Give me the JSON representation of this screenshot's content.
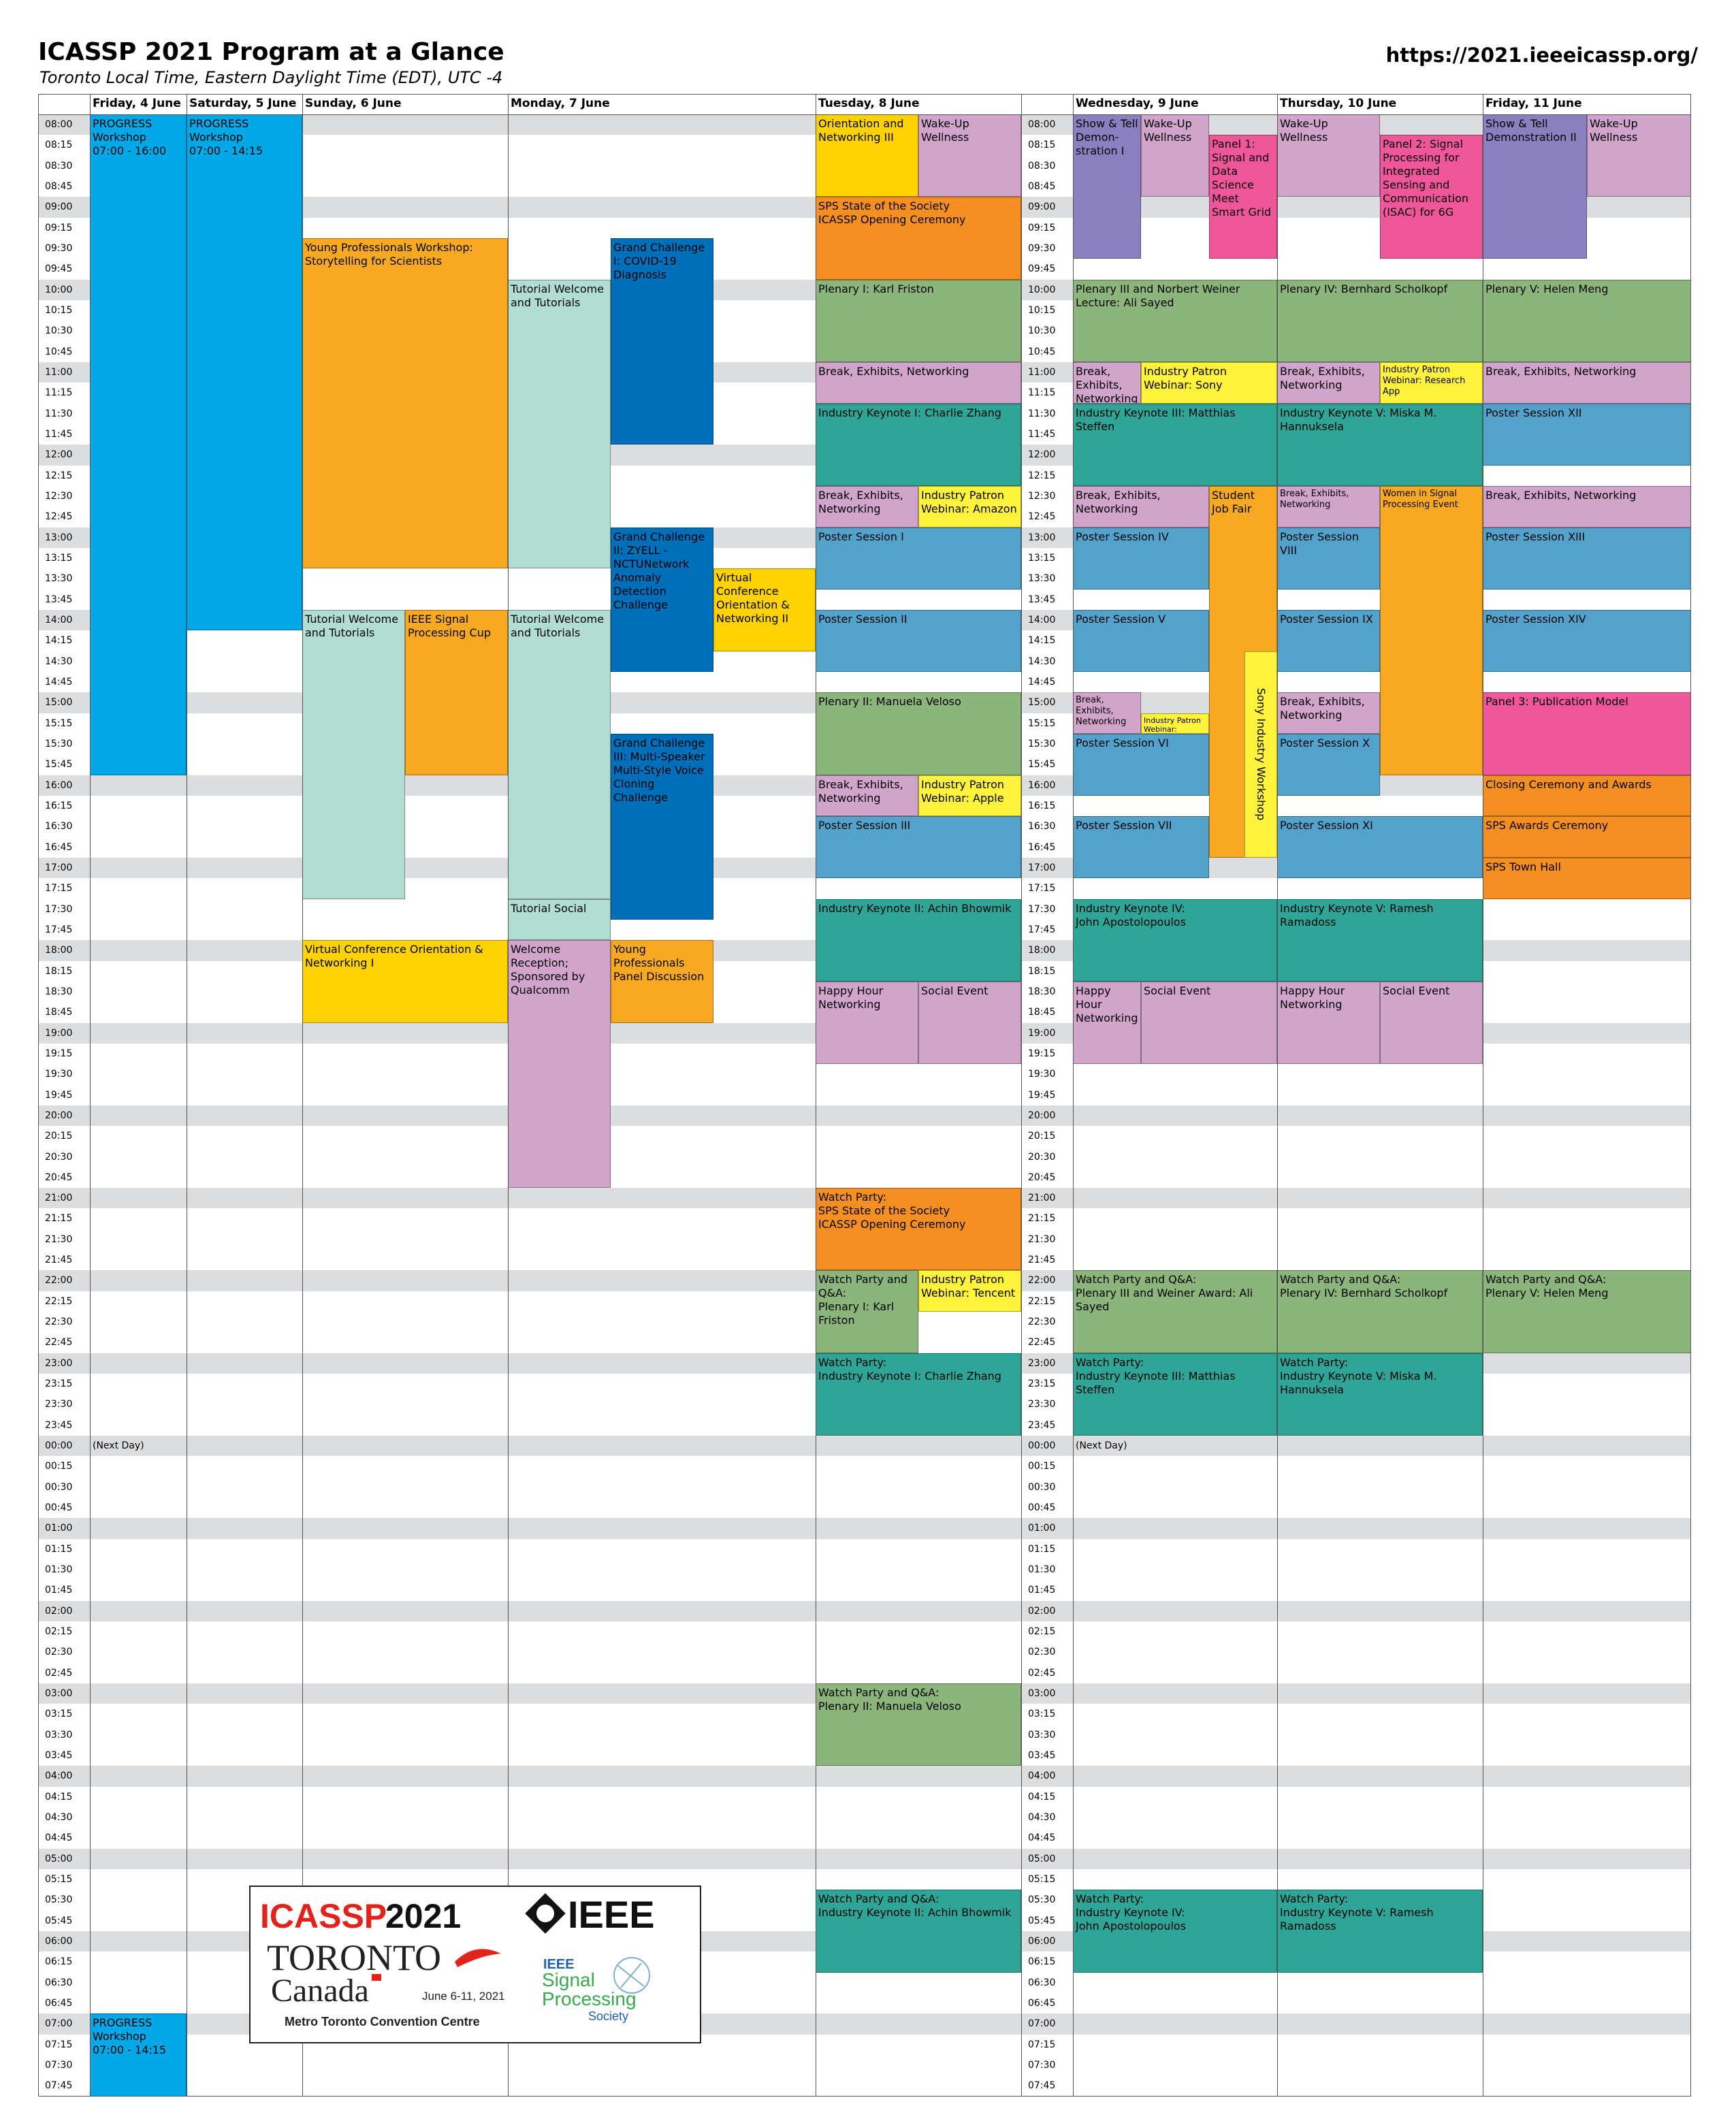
{
  "title": "ICASSP 2021 Program at a Glance",
  "subtitle": "Toronto Local Time, Eastern Daylight Time (EDT), UTC -4",
  "url": "https://2021.ieeeicassp.org/",
  "days": [
    "Friday, 4 June",
    "Saturday, 5  June",
    "Sunday, 6 June",
    "Monday, 7 June",
    "Tuesday, 8 June",
    "Wednesday, 9 June",
    "Thursday, 10 June",
    "Friday, 11 June"
  ],
  "times": [
    "08:00",
    "08:15",
    "08:30",
    "08:45",
    "09:00",
    "09:15",
    "09:30",
    "09:45",
    "10:00",
    "10:15",
    "10:30",
    "10:45",
    "11:00",
    "11:15",
    "11:30",
    "11:45",
    "12:00",
    "12:15",
    "12:30",
    "12:45",
    "13:00",
    "13:15",
    "13:30",
    "13:45",
    "14:00",
    "14:15",
    "14:30",
    "14:45",
    "15:00",
    "15:15",
    "15:30",
    "15:45",
    "16:00",
    "16:15",
    "16:30",
    "16:45",
    "17:00",
    "17:15",
    "17:30",
    "17:45",
    "18:00",
    "18:15",
    "18:30",
    "18:45",
    "19:00",
    "19:15",
    "19:30",
    "19:45",
    "20:00",
    "20:15",
    "20:30",
    "20:45",
    "21:00",
    "21:15",
    "21:30",
    "21:45",
    "22:00",
    "22:15",
    "22:30",
    "22:45",
    "23:00",
    "23:15",
    "23:30",
    "23:45",
    "00:00",
    "00:15",
    "00:30",
    "00:45",
    "01:00",
    "01:15",
    "01:30",
    "01:45",
    "02:00",
    "02:15",
    "02:30",
    "02:45",
    "03:00",
    "03:15",
    "03:30",
    "03:45",
    "04:00",
    "04:15",
    "04:30",
    "04:45",
    "05:00",
    "05:15",
    "05:30",
    "05:45",
    "06:00",
    "06:15",
    "06:30",
    "06:45",
    "07:00",
    "07:15",
    "07:30",
    "07:45"
  ],
  "notes": [
    {
      "col": "fri4",
      "slot": 64,
      "text": "(Next Day)"
    },
    {
      "col": "wed",
      "slot": 64,
      "text": "(Next Day)"
    }
  ],
  "colors": {
    "cyan": "#00a8e8",
    "orange": "#f7a921",
    "mint": "#b1ddd3",
    "yellow": "#ffd200",
    "blue": "#006fba",
    "lilac": "#d1a4cc",
    "deep_orange": "#f58f21",
    "green": "#8bb57b",
    "lemon": "#fff33b",
    "purple": "#8a80bf",
    "pink": "#ef579a",
    "steel": "#52a2cb",
    "teal": "#2ea596",
    "band": "#dcdddf"
  },
  "events": [
    {
      "col": "fri4",
      "span": 1,
      "s": 0,
      "d": 32,
      "color": "cyan",
      "text": "PROGRESS Workshop\n07:00 - 16:00"
    },
    {
      "col": "fri4",
      "span": 1,
      "s": 92,
      "d": 4,
      "color": "cyan",
      "text": "PROGRESS Workshop\n07:00 - 14:15"
    },
    {
      "col": "sat5",
      "span": 1,
      "s": 0,
      "d": 25,
      "color": "cyan",
      "text": "PROGRESS Workshop\n07:00 - 14:15"
    },
    {
      "col": "sun1",
      "span": 2,
      "s": 6,
      "d": 16,
      "color": "orange",
      "text": "Young Professionals Workshop: Storytelling for Scientists"
    },
    {
      "col": "sun1",
      "span": 1,
      "s": 24,
      "d": 14,
      "color": "mint",
      "text": "Tutorial Welcome and Tutorials"
    },
    {
      "col": "sun2",
      "span": 1,
      "s": 24,
      "d": 8,
      "color": "orange",
      "text": "IEEE Signal Processing Cup"
    },
    {
      "col": "sun1",
      "span": 2,
      "s": 40,
      "d": 4,
      "color": "yellow",
      "text": "Virtual Conference Orientation & Networking I"
    },
    {
      "col": "mon1",
      "span": 1,
      "s": 8,
      "d": 14,
      "color": "mint",
      "text": "Tutorial Welcome and Tutorials"
    },
    {
      "col": "mon1",
      "span": 1,
      "s": 24,
      "d": 14,
      "color": "mint",
      "text": "Tutorial Welcome and Tutorials"
    },
    {
      "col": "mon1",
      "span": 1,
      "s": 38,
      "d": 2,
      "color": "mint",
      "text": "Tutorial Social"
    },
    {
      "col": "mon1",
      "span": 1,
      "s": 40,
      "d": 12,
      "color": "lilac",
      "text": "Welcome Reception; Sponsored by Qualcomm"
    },
    {
      "col": "mon2",
      "span": 1,
      "s": 6,
      "d": 10,
      "color": "blue",
      "text": "Grand Challenge I: COVID-19 Diagnosis"
    },
    {
      "col": "mon2",
      "span": 1,
      "s": 20,
      "d": 7,
      "color": "blue",
      "text": "Grand Challenge II: ZYELL - NCTUNetwork Anomaly Detection Challenge"
    },
    {
      "col": "mon3",
      "span": 1,
      "s": 22,
      "d": 4,
      "color": "yellow",
      "text": "Virtual Conference Orientation & Networking II"
    },
    {
      "col": "mon2",
      "span": 1,
      "s": 30,
      "d": 9,
      "color": "blue",
      "text": "Grand Challenge III: Multi-Speaker Multi-Style Voice Cloning Challenge"
    },
    {
      "col": "mon2",
      "span": 1,
      "s": 40,
      "d": 4,
      "color": "orange",
      "text": "Young Professionals Panel Discussion"
    },
    {
      "col": "tue1",
      "span": 1,
      "s": 0,
      "d": 4,
      "color": "yellow",
      "text": "Orientation and Networking III"
    },
    {
      "col": "tue2",
      "span": 1,
      "s": 0,
      "d": 4,
      "color": "lilac",
      "text": "Wake-Up Wellness"
    },
    {
      "col": "tue1",
      "span": 2,
      "s": 4,
      "d": 4,
      "color": "deep_orange",
      "text": "SPS State of the Society\nICASSP Opening Ceremony"
    },
    {
      "col": "tue1",
      "span": 2,
      "s": 8,
      "d": 4,
      "color": "green",
      "text": "Plenary I: Karl Friston"
    },
    {
      "col": "tue1",
      "span": 2,
      "s": 12,
      "d": 2,
      "color": "lilac",
      "text": "Break, Exhibits, Networking"
    },
    {
      "col": "tue1",
      "span": 2,
      "s": 14,
      "d": 4,
      "color": "teal",
      "text": "Industry Keynote I: Charlie Zhang"
    },
    {
      "col": "tue1",
      "span": 1,
      "s": 18,
      "d": 2,
      "color": "lilac",
      "text": "Break, Exhibits, Networking"
    },
    {
      "col": "tue2",
      "span": 1,
      "s": 18,
      "d": 2,
      "color": "lemon",
      "text": "Industry Patron Webinar: Amazon"
    },
    {
      "col": "tue1",
      "span": 2,
      "s": 20,
      "d": 3,
      "color": "steel",
      "text": "Poster Session I"
    },
    {
      "col": "tue1",
      "span": 2,
      "s": 24,
      "d": 3,
      "color": "steel",
      "text": "Poster Session II"
    },
    {
      "col": "tue1",
      "span": 2,
      "s": 28,
      "d": 4,
      "color": "green",
      "text": "Plenary II: Manuela Veloso"
    },
    {
      "col": "tue1",
      "span": 1,
      "s": 32,
      "d": 2,
      "color": "lilac",
      "text": "Break, Exhibits, Networking"
    },
    {
      "col": "tue2",
      "span": 1,
      "s": 32,
      "d": 2,
      "color": "lemon",
      "text": "Industry Patron Webinar: Apple"
    },
    {
      "col": "tue1",
      "span": 2,
      "s": 34,
      "d": 3,
      "color": "steel",
      "text": "Poster Session III"
    },
    {
      "col": "tue1",
      "span": 2,
      "s": 38,
      "d": 4,
      "color": "teal",
      "text": "Industry Keynote II: Achin Bhowmik"
    },
    {
      "col": "tue1",
      "span": 1,
      "s": 42,
      "d": 4,
      "color": "lilac",
      "text": "Happy Hour Networking"
    },
    {
      "col": "tue2",
      "span": 1,
      "s": 42,
      "d": 4,
      "color": "lilac",
      "text": "Social Event"
    },
    {
      "col": "tue1",
      "span": 2,
      "s": 52,
      "d": 4,
      "color": "deep_orange",
      "text": "Watch Party:\nSPS State of the Society\nICASSP Opening Ceremony"
    },
    {
      "col": "tue1",
      "span": 1,
      "s": 56,
      "d": 4,
      "color": "green",
      "text": "Watch Party and Q&A:\nPlenary I: Karl Friston"
    },
    {
      "col": "tue2",
      "span": 1,
      "s": 56,
      "d": 2,
      "color": "lemon",
      "text": "Industry Patron Webinar: Tencent"
    },
    {
      "col": "tue1",
      "span": 2,
      "s": 60,
      "d": 4,
      "color": "teal",
      "text": "Watch Party:\nIndustry Keynote I: Charlie Zhang"
    },
    {
      "col": "tue1",
      "span": 2,
      "s": 76,
      "d": 4,
      "color": "green",
      "text": "Watch Party and Q&A:\nPlenary II: Manuela Veloso"
    },
    {
      "col": "tue1",
      "span": 2,
      "s": 86,
      "d": 4,
      "color": "teal",
      "text": "Watch Party and Q&A:\nIndustry Keynote II: Achin Bhowmik"
    },
    {
      "col": "wed1",
      "span": 1,
      "s": 0,
      "d": 7,
      "color": "purple",
      "text": "Show & Tell Demon-\nstration I"
    },
    {
      "col": "wed2",
      "span": 1,
      "s": 0,
      "d": 4,
      "color": "lilac",
      "text": "Wake-Up Wellness"
    },
    {
      "col": "wed3",
      "span": 1,
      "s": 1,
      "d": 6,
      "color": "pink",
      "text": "Panel 1: Signal and Data Science Meet Smart Grid"
    },
    {
      "col": "wed1",
      "span": 3,
      "s": 8,
      "d": 4,
      "color": "green",
      "text": "Plenary III and Norbert Weiner Lecture: Ali Sayed"
    },
    {
      "col": "wed1",
      "span": 1,
      "s": 12,
      "d": 2,
      "color": "lilac",
      "text": "Break, Exhibits, Networking"
    },
    {
      "col": "wed2",
      "span": 2,
      "s": 12,
      "d": 2,
      "color": "lemon",
      "text": "Industry Patron Webinar: Sony"
    },
    {
      "col": "wed1",
      "span": 3,
      "s": 14,
      "d": 4,
      "color": "teal",
      "text": "Industry Keynote III: Matthias Steffen"
    },
    {
      "col": "wed1",
      "span": 2,
      "s": 18,
      "d": 2,
      "color": "lilac",
      "text": "Break, Exhibits, Networking"
    },
    {
      "col": "wed3",
      "span": 1,
      "s": 18,
      "d": 18,
      "color": "orange",
      "text": "Student Job Fair"
    },
    {
      "col": "wed1",
      "span": 2,
      "s": 20,
      "d": 3,
      "color": "steel",
      "text": "Poster Session IV"
    },
    {
      "col": "wed1",
      "span": 2,
      "s": 24,
      "d": 3,
      "color": "steel",
      "text": "Poster Session V"
    },
    {
      "col": "wed1",
      "span": 1,
      "s": 28,
      "d": 2,
      "color": "lilac",
      "text": "Break, Exhibits, Networking",
      "size": "small"
    },
    {
      "col": "wed2",
      "span": 1,
      "s": 29,
      "d": 1,
      "color": "lemon",
      "text": "Industry Patron Webinar: Facebook",
      "size": "tiny"
    },
    {
      "col": "wed1",
      "span": 2,
      "s": 30,
      "d": 3,
      "color": "steel",
      "text": "Poster Session VI"
    },
    {
      "col": "wed1",
      "span": 2,
      "s": 34,
      "d": 3,
      "color": "steel",
      "text": "Poster Session VII"
    },
    {
      "col": "wed1",
      "span": 3,
      "s": 38,
      "d": 4,
      "color": "teal",
      "text": "Industry Keynote IV:\nJohn Apostolopoulos"
    },
    {
      "col": "wed1",
      "span": 1,
      "s": 42,
      "d": 4,
      "color": "lilac",
      "text": "Happy Hour Networking"
    },
    {
      "col": "wed2",
      "span": 2,
      "s": 42,
      "d": 4,
      "color": "lilac",
      "text": "Social Event"
    },
    {
      "col": "wed1",
      "span": 3,
      "s": 56,
      "d": 4,
      "color": "green",
      "text": "Watch Party and Q&A:\nPlenary III and Weiner Award: Ali Sayed"
    },
    {
      "col": "wed1",
      "span": 3,
      "s": 60,
      "d": 4,
      "color": "teal",
      "text": "Watch Party:\nIndustry Keynote III: Matthias Steffen"
    },
    {
      "col": "wed1",
      "span": 3,
      "s": 86,
      "d": 4,
      "color": "teal",
      "text": "Watch Party:\nIndustry Keynote IV:\nJohn Apostolopoulos"
    },
    {
      "col": "thu1",
      "span": 1,
      "s": 0,
      "d": 4,
      "color": "lilac",
      "text": "Wake-Up Wellness"
    },
    {
      "col": "thu2",
      "span": 1,
      "s": 1,
      "d": 6,
      "color": "pink",
      "text": "Panel 2: Signal Processing for Integrated Sensing and Communication (ISAC) for 6G"
    },
    {
      "col": "thu1",
      "span": 2,
      "s": 8,
      "d": 4,
      "color": "green",
      "text": "Plenary IV: Bernhard Scholkopf"
    },
    {
      "col": "thu1",
      "span": 1,
      "s": 12,
      "d": 2,
      "color": "lilac",
      "text": "Break, Exhibits, Networking"
    },
    {
      "col": "thu2",
      "span": 1,
      "s": 12,
      "d": 2,
      "color": "lemon",
      "text": "Industry Patron Webinar: Research App",
      "size": "small"
    },
    {
      "col": "thu1",
      "span": 2,
      "s": 14,
      "d": 4,
      "color": "teal",
      "text": "Industry Keynote V: Miska M. Hannuksela"
    },
    {
      "col": "thu1",
      "span": 1,
      "s": 18,
      "d": 2,
      "color": "lilac",
      "text": "Break, Exhibits, Networking",
      "size": "small"
    },
    {
      "col": "thu2",
      "span": 1,
      "s": 18,
      "d": 14,
      "color": "orange",
      "text": "Women in Signal Processing Event",
      "size": "small"
    },
    {
      "col": "thu1",
      "span": 1,
      "s": 20,
      "d": 3,
      "color": "steel",
      "text": "Poster Session VIII"
    },
    {
      "col": "thu1",
      "span": 1,
      "s": 24,
      "d": 3,
      "color": "steel",
      "text": "Poster Session IX"
    },
    {
      "col": "thu1",
      "span": 1,
      "s": 28,
      "d": 2,
      "color": "lilac",
      "text": "Break, Exhibits, Networking"
    },
    {
      "col": "thu1",
      "span": 1,
      "s": 30,
      "d": 3,
      "color": "steel",
      "text": "Poster Session X"
    },
    {
      "col": "thu1",
      "span": 2,
      "s": 34,
      "d": 3,
      "color": "steel",
      "text": "Poster Session XI"
    },
    {
      "col": "thu1",
      "span": 2,
      "s": 38,
      "d": 4,
      "color": "teal",
      "text": "Industry Keynote V: Ramesh Ramadoss"
    },
    {
      "col": "thu1",
      "span": 1,
      "s": 42,
      "d": 4,
      "color": "lilac",
      "text": "Happy Hour Networking"
    },
    {
      "col": "thu2",
      "span": 1,
      "s": 42,
      "d": 4,
      "color": "lilac",
      "text": "Social Event"
    },
    {
      "col": "thu1",
      "span": 2,
      "s": 56,
      "d": 4,
      "color": "green",
      "text": "Watch Party and Q&A:\nPlenary IV: Bernhard Scholkopf"
    },
    {
      "col": "thu1",
      "span": 2,
      "s": 60,
      "d": 4,
      "color": "teal",
      "text": "Watch Party:\nIndustry Keynote V: Miska M. Hannuksela"
    },
    {
      "col": "thu1",
      "span": 2,
      "s": 86,
      "d": 4,
      "color": "teal",
      "text": "Watch Party:\nIndustry Keynote V: Ramesh Ramadoss"
    },
    {
      "col": "fri1",
      "span": 1,
      "s": 0,
      "d": 7,
      "color": "purple",
      "text": "Show & Tell Demonstration II"
    },
    {
      "col": "fri2",
      "span": 1,
      "s": 0,
      "d": 4,
      "color": "lilac",
      "text": "Wake-Up Wellness"
    },
    {
      "col": "fri1",
      "span": 2,
      "s": 8,
      "d": 4,
      "color": "green",
      "text": "Plenary V: Helen Meng"
    },
    {
      "col": "fri1",
      "span": 2,
      "s": 12,
      "d": 2,
      "color": "lilac",
      "text": "Break, Exhibits, Networking"
    },
    {
      "col": "fri1",
      "span": 2,
      "s": 14,
      "d": 3,
      "color": "steel",
      "text": "Poster Session XII"
    },
    {
      "col": "fri1",
      "span": 2,
      "s": 18,
      "d": 2,
      "color": "lilac",
      "text": "Break, Exhibits, Networking"
    },
    {
      "col": "fri1",
      "span": 2,
      "s": 20,
      "d": 3,
      "color": "steel",
      "text": "Poster Session XIII"
    },
    {
      "col": "fri1",
      "span": 2,
      "s": 24,
      "d": 3,
      "color": "steel",
      "text": "Poster Session XIV"
    },
    {
      "col": "fri1",
      "span": 2,
      "s": 28,
      "d": 4,
      "color": "pink",
      "text": "Panel 3: Publication Model"
    },
    {
      "col": "fri1",
      "span": 2,
      "s": 32,
      "d": 2,
      "color": "deep_orange",
      "text": "Closing Ceremony and Awards"
    },
    {
      "col": "fri1",
      "span": 2,
      "s": 34,
      "d": 2,
      "color": "deep_orange",
      "text": "SPS Awards Ceremony"
    },
    {
      "col": "fri1",
      "span": 2,
      "s": 36,
      "d": 2,
      "color": "deep_orange",
      "text": "SPS Town Hall"
    },
    {
      "col": "fri1",
      "span": 2,
      "s": 56,
      "d": 4,
      "color": "green",
      "text": "Watch Party and Q&A:\nPlenary V: Helen Meng"
    }
  ],
  "sony_workshop": {
    "s": 26,
    "d": 10,
    "color": "lemon",
    "text": "Sony Industry Workshop"
  },
  "logo": {
    "icassp": "ICASSP",
    "year": "2021",
    "city": "TORONTO",
    "country": "Canada",
    "dates": "June 6-11, 2021",
    "venue": "Metro Toronto Convention Centre",
    "ieee": "IEEE",
    "sps_line1": "IEEE",
    "sps_line2": "Signal",
    "sps_line3": "Processing",
    "sps_line4": "Society"
  }
}
